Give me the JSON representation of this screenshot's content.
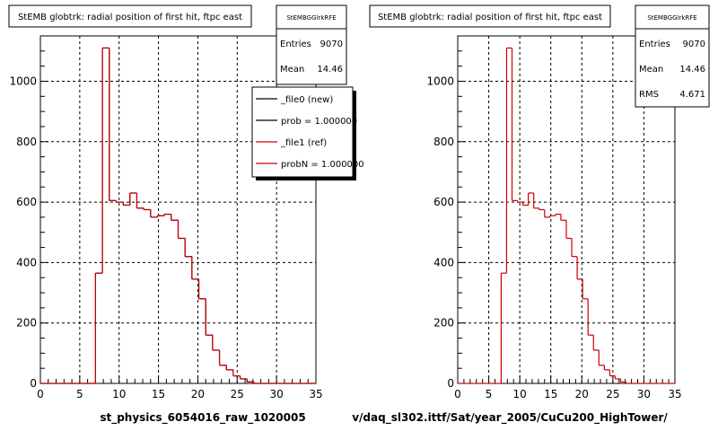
{
  "chart_data": [
    {
      "type": "bar",
      "title": "StEMB globtrk: radial position of first hit, ftpc east",
      "xlabel": "st_physics_6054016_raw_1020005",
      "ylabel": "",
      "xlim": [
        0,
        35
      ],
      "ylim": [
        0,
        1150
      ],
      "x_ticks": [
        0,
        5,
        10,
        15,
        20,
        25,
        30,
        35
      ],
      "y_ticks": [
        0,
        200,
        400,
        600,
        800,
        1000
      ],
      "grid": true,
      "series": [
        {
          "name": "_file0 (new)",
          "bin_edges": [
            0,
            0.875,
            1.75,
            2.625,
            3.5,
            4.375,
            5.25,
            6.125,
            7.0,
            7.875,
            8.75,
            9.625,
            10.5,
            11.375,
            12.25,
            13.125,
            14.0,
            14.875,
            15.75,
            16.625,
            17.5,
            18.375,
            19.25,
            20.125,
            21.0,
            21.875,
            22.75,
            23.625,
            24.5,
            25.375,
            26.25,
            27.125,
            28.0,
            28.875,
            29.75,
            30.625,
            31.5,
            32.375,
            33.25,
            34.125,
            35.0
          ],
          "values": [
            0,
            0,
            0,
            0,
            0,
            0,
            0,
            0,
            365,
            1110,
            605,
            600,
            590,
            630,
            580,
            575,
            550,
            555,
            560,
            540,
            480,
            420,
            345,
            280,
            160,
            110,
            60,
            45,
            25,
            15,
            5,
            0,
            0,
            0,
            0,
            0,
            0,
            0,
            0,
            0
          ]
        },
        {
          "name": "_file1 (ref)",
          "bin_edges": [
            0,
            0.875,
            1.75,
            2.625,
            3.5,
            4.375,
            5.25,
            6.125,
            7.0,
            7.875,
            8.75,
            9.625,
            10.5,
            11.375,
            12.25,
            13.125,
            14.0,
            14.875,
            15.75,
            16.625,
            17.5,
            18.375,
            19.25,
            20.125,
            21.0,
            21.875,
            22.75,
            23.625,
            24.5,
            25.375,
            26.25,
            27.125,
            28.0,
            28.875,
            29.75,
            30.625,
            31.5,
            32.375,
            33.25,
            34.125,
            35.0
          ],
          "values": [
            0,
            0,
            0,
            0,
            0,
            0,
            0,
            0,
            365,
            1110,
            605,
            600,
            590,
            630,
            580,
            575,
            550,
            555,
            560,
            540,
            480,
            420,
            345,
            280,
            160,
            110,
            60,
            45,
            25,
            15,
            5,
            0,
            0,
            0,
            0,
            0,
            0,
            0,
            0,
            0
          ]
        }
      ],
      "stats": {
        "name": "StEMBGGlrkRFE",
        "rows": [
          [
            "Entries",
            "9070"
          ],
          [
            "Mean",
            "14.46"
          ]
        ]
      },
      "legend": {
        "entries": [
          {
            "label": "_file0 (new)",
            "color": "#000000"
          },
          {
            "label": "prob = 1.000000",
            "color": "#000000"
          },
          {
            "label": "_file1 (ref)",
            "color": "#cc0000"
          },
          {
            "label": "probN = 1.000000",
            "color": "#cc0000"
          }
        ]
      }
    },
    {
      "type": "bar",
      "title": "StEMB globtrk: radial position of first hit, ftpc east",
      "xlabel": "v/daq_sl302.ittf/Sat/year_2005/CuCu200_HighTower/",
      "ylabel": "",
      "xlim": [
        0,
        35
      ],
      "ylim": [
        0,
        1150
      ],
      "x_ticks": [
        0,
        5,
        10,
        15,
        20,
        25,
        30,
        35
      ],
      "y_ticks": [
        0,
        200,
        400,
        600,
        800,
        1000
      ],
      "grid": true,
      "series": [
        {
          "name": "",
          "bin_edges": [
            0,
            0.875,
            1.75,
            2.625,
            3.5,
            4.375,
            5.25,
            6.125,
            7.0,
            7.875,
            8.75,
            9.625,
            10.5,
            11.375,
            12.25,
            13.125,
            14.0,
            14.875,
            15.75,
            16.625,
            17.5,
            18.375,
            19.25,
            20.125,
            21.0,
            21.875,
            22.75,
            23.625,
            24.5,
            25.375,
            26.25,
            27.125,
            28.0,
            28.875,
            29.75,
            30.625,
            31.5,
            32.375,
            33.25,
            34.125,
            35.0
          ],
          "values": [
            0,
            0,
            0,
            0,
            0,
            0,
            0,
            0,
            365,
            1110,
            605,
            600,
            590,
            630,
            580,
            575,
            550,
            555,
            560,
            540,
            480,
            420,
            345,
            280,
            160,
            110,
            60,
            45,
            25,
            15,
            5,
            0,
            0,
            0,
            0,
            0,
            0,
            0,
            0,
            0
          ]
        }
      ],
      "stats": {
        "name": "StEMBGGlrkRFE",
        "rows": [
          [
            "Entries",
            "9070"
          ],
          [
            "Mean",
            "14.46"
          ],
          [
            "RMS",
            "4.671"
          ]
        ]
      }
    }
  ],
  "colors": {
    "new": "#000000",
    "ref": "#cc0000",
    "grid": "#000000",
    "shadow": "#000000"
  }
}
